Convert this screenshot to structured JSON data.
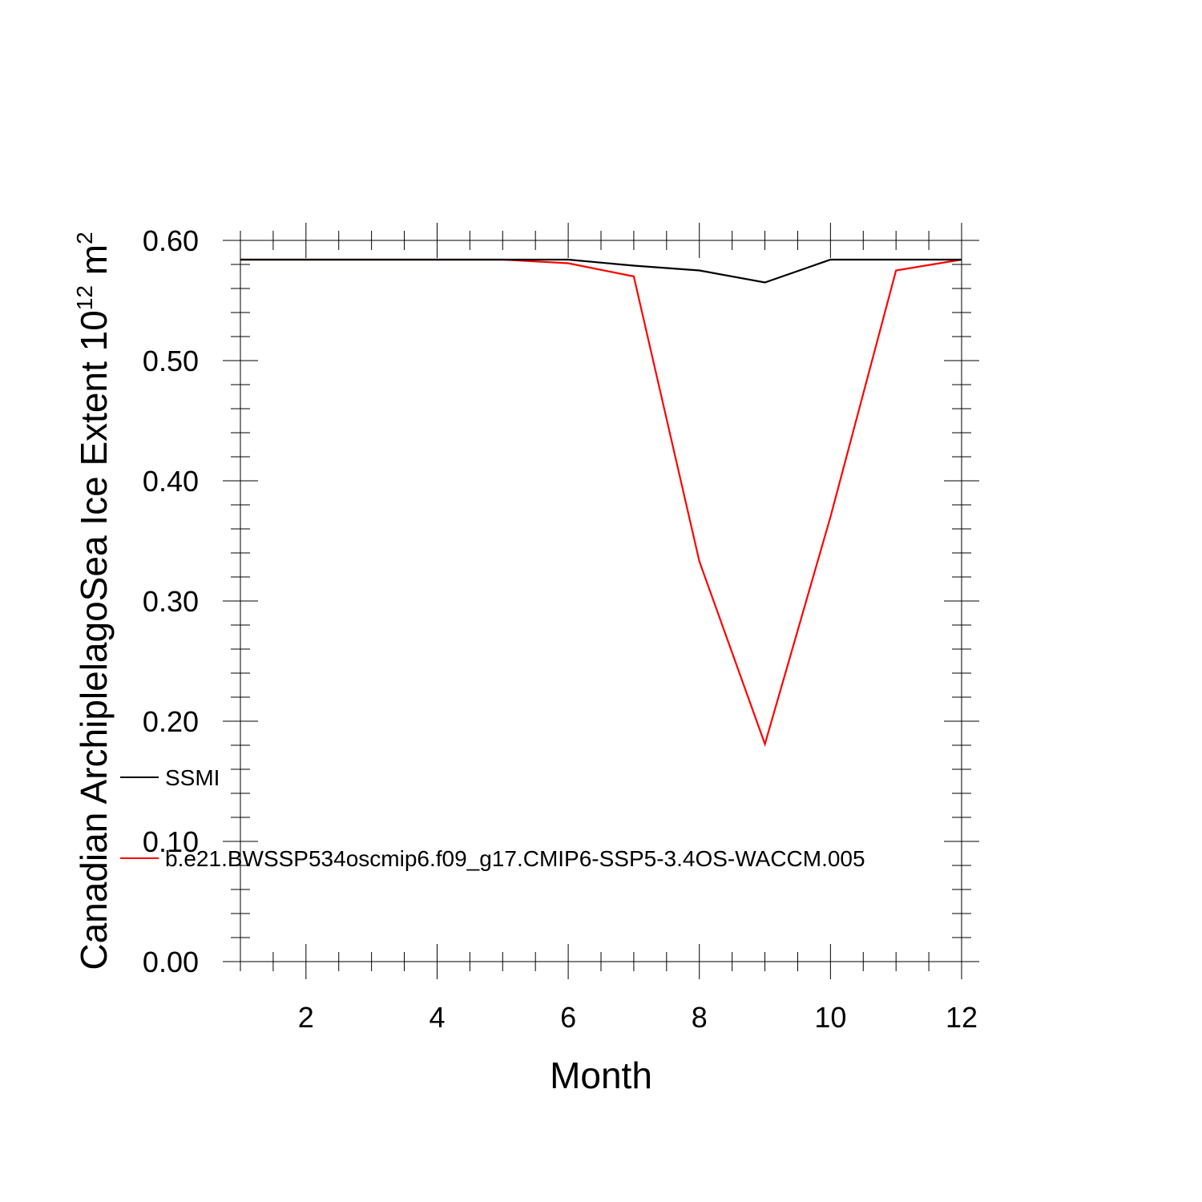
{
  "chart_data": {
    "type": "line",
    "xlabel": "Month",
    "ylabel": {
      "main": "Canadian ArchiplelagoSea Ice Extent 10",
      "superscript": "12",
      "unit": " m",
      "unit_superscript": "2"
    },
    "xlim": [
      1,
      12
    ],
    "ylim": [
      0.0,
      0.6
    ],
    "x_ticks": [
      2,
      4,
      6,
      8,
      10,
      12
    ],
    "x_tick_labels": [
      "2",
      "4",
      "6",
      "8",
      "10",
      "12"
    ],
    "y_ticks": [
      0.0,
      0.1,
      0.2,
      0.3,
      0.4,
      0.5,
      0.6
    ],
    "y_tick_labels": [
      "0.00",
      "0.10",
      "0.20",
      "0.30",
      "0.40",
      "0.50",
      "0.60"
    ],
    "grid": false,
    "legend_placement": "left",
    "x": [
      1,
      2,
      3,
      4,
      5,
      6,
      7,
      8,
      9,
      10,
      11,
      12
    ],
    "series": [
      {
        "name": "SSMI",
        "color": "#000000",
        "values": [
          0.584,
          0.584,
          0.584,
          0.584,
          0.584,
          0.584,
          0.579,
          0.575,
          0.565,
          0.584,
          0.584,
          0.584
        ]
      },
      {
        "name": "b.e21.BWSSP534oscmip6.f09_g17.CMIP6-SSP5-3.4OS-WACCM.005",
        "color": "#ff0000",
        "values": [
          0.584,
          0.584,
          0.584,
          0.584,
          0.584,
          0.581,
          0.57,
          0.333,
          0.181,
          0.37,
          0.575,
          0.584
        ]
      }
    ]
  }
}
